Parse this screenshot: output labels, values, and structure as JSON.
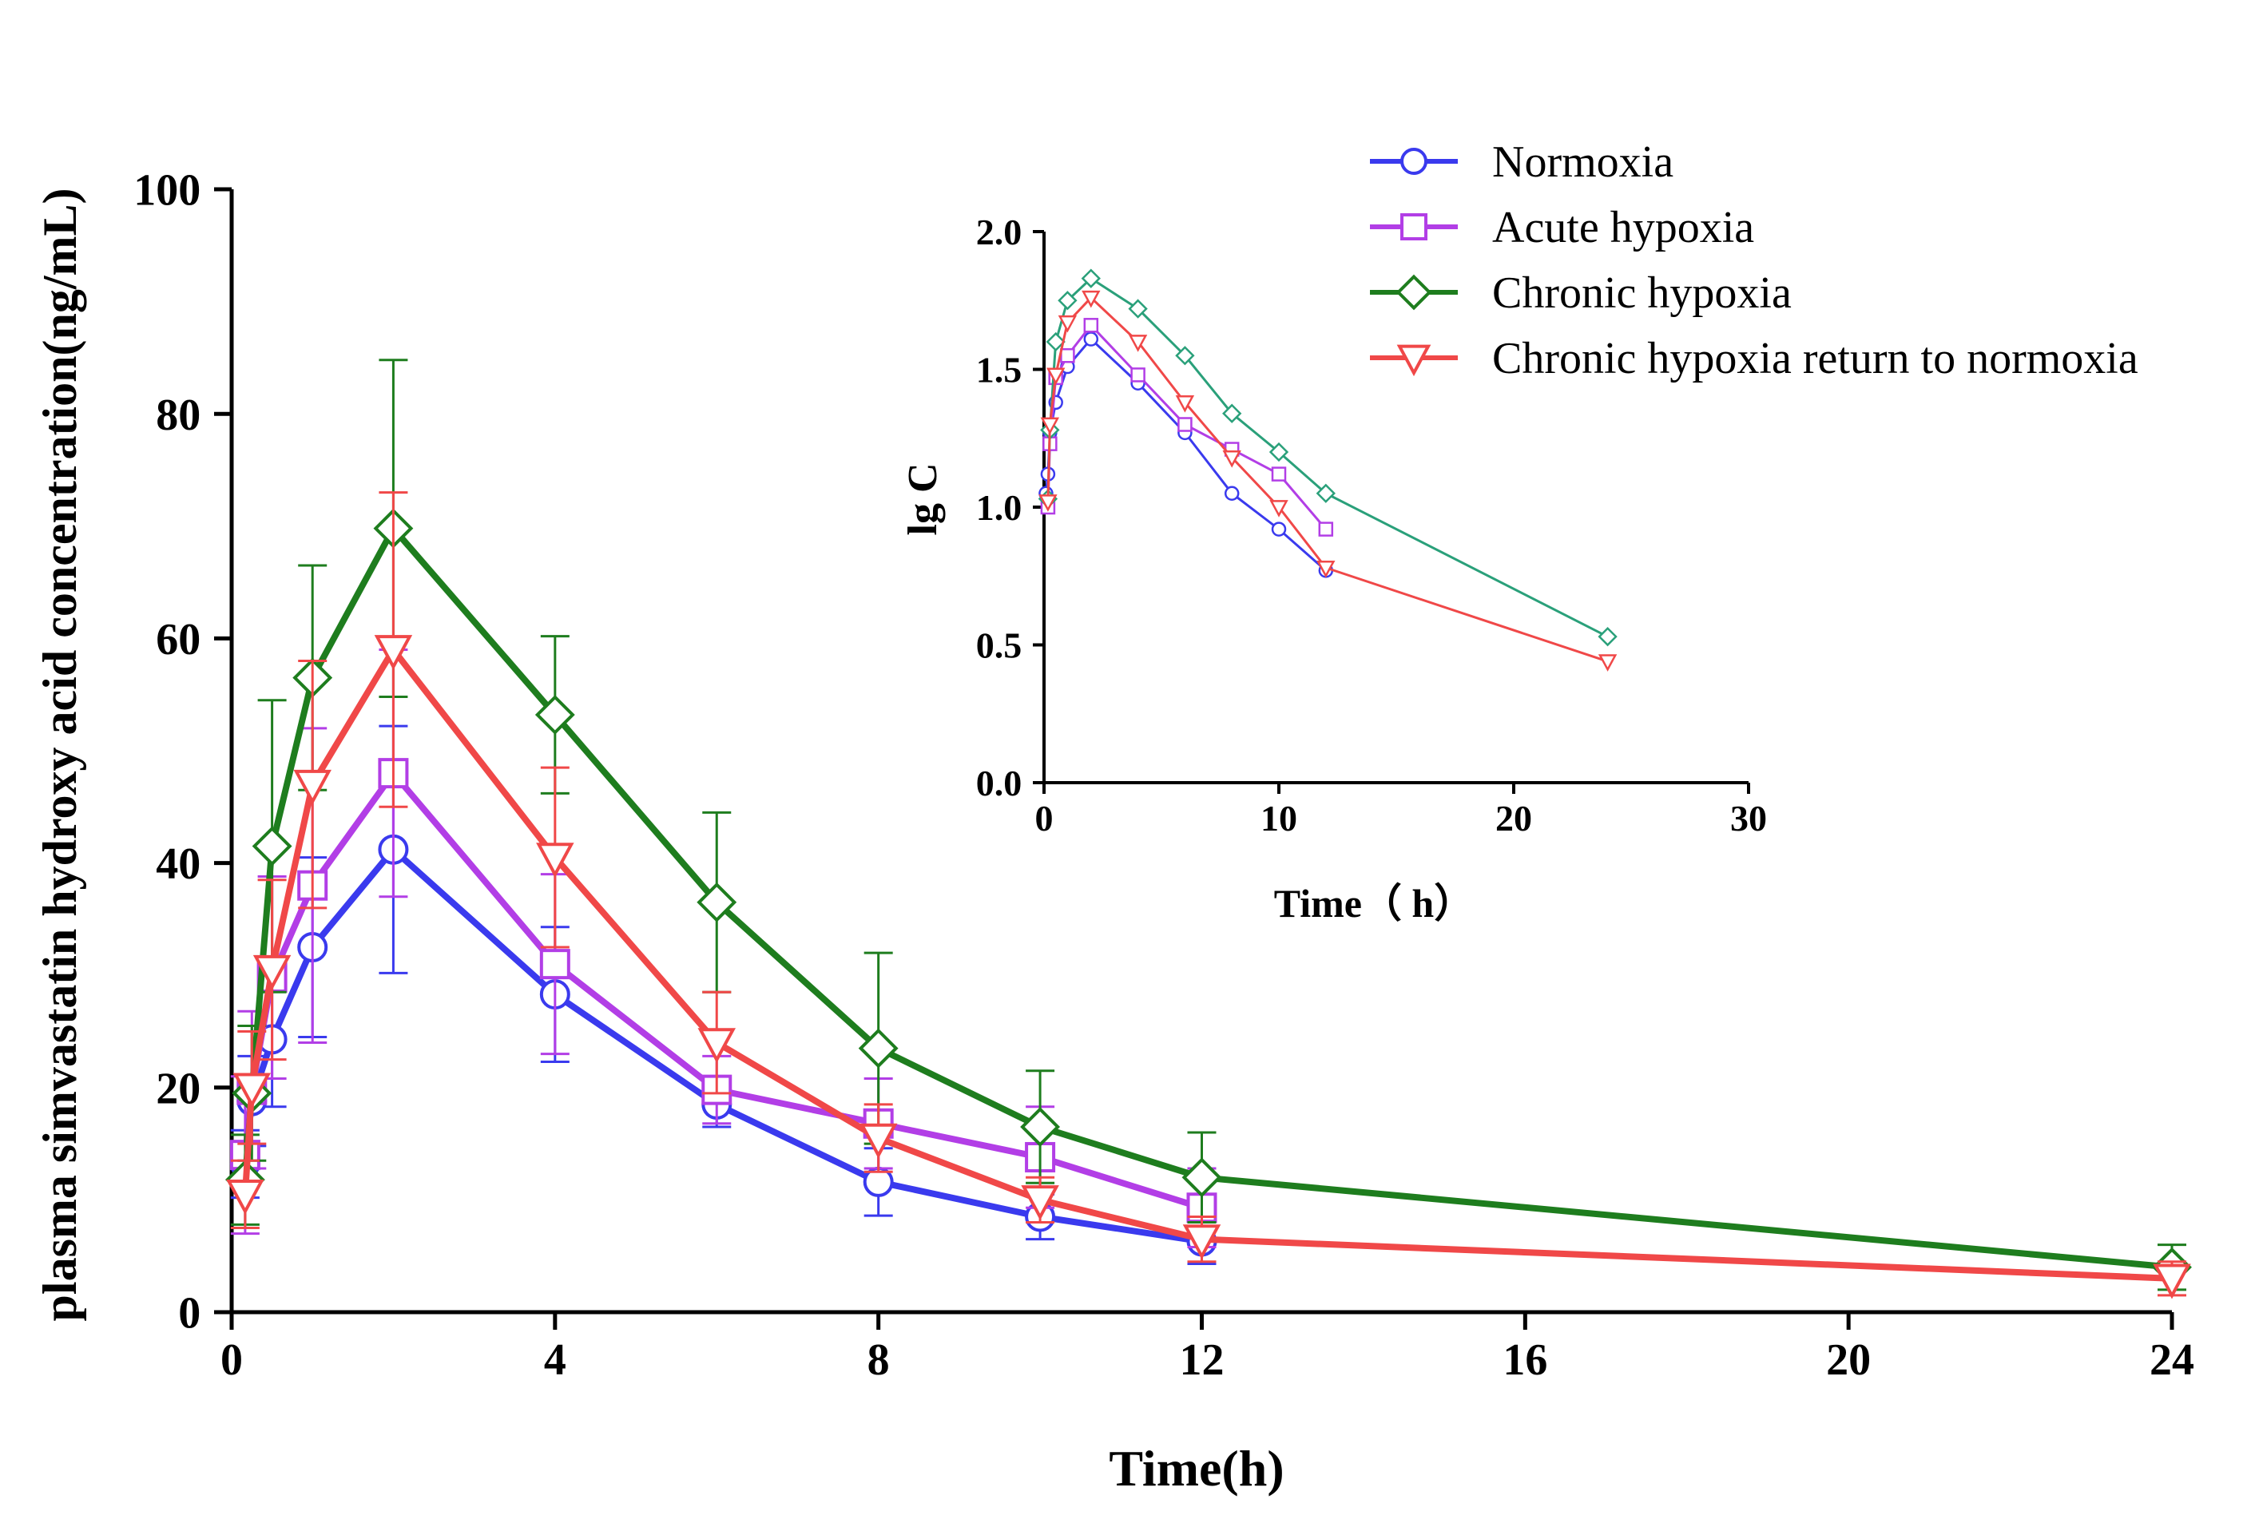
{
  "colors": {
    "normoxia": "#3a3aee",
    "acute": "#b23ee6",
    "chronic": "#1e7d1e",
    "return": "#f04848",
    "inset_chronic": "#2aa07a",
    "axis": "#000000"
  },
  "chart_data": [
    {
      "id": "main",
      "type": "line",
      "title": "",
      "xlabel": "Time(h)",
      "ylabel": "plasma simvastatin hydroxy acid concentration(ng/mL)",
      "xlim": [
        0,
        24
      ],
      "ylim": [
        0,
        100
      ],
      "xticks": [
        0,
        4,
        8,
        12,
        16,
        20,
        24
      ],
      "xtick_labels": [
        "0",
        "4",
        "8",
        "12",
        "16",
        "20",
        "24"
      ],
      "yticks": [
        0,
        20,
        40,
        60,
        80,
        100
      ],
      "ytick_labels": [
        "0",
        "20",
        "40",
        "60",
        "80",
        "100"
      ],
      "grid": false,
      "series": [
        {
          "name": "Normoxia",
          "marker": "circle",
          "x": [
            0.167,
            0.25,
            0.5,
            1,
            2,
            4,
            6,
            8,
            10,
            12
          ],
          "y": [
            13.2,
            18.8,
            24.3,
            32.5,
            41.2,
            28.3,
            18.5,
            11.6,
            8.5,
            6.3
          ],
          "err": [
            3.0,
            4.0,
            6.0,
            8.0,
            11.0,
            6.0,
            2.0,
            3.0,
            2.0,
            2.0
          ]
        },
        {
          "name": "Acute hypoxia",
          "marker": "square",
          "x": [
            0.167,
            0.25,
            0.5,
            1,
            2,
            4,
            6,
            8,
            10,
            12
          ],
          "y": [
            14.0,
            19.8,
            29.8,
            38.0,
            48.0,
            31.0,
            19.8,
            16.8,
            13.8,
            9.3
          ],
          "err": [
            7.0,
            7.0,
            9.0,
            14.0,
            11.0,
            8.0,
            3.0,
            4.0,
            4.5,
            3.5
          ]
        },
        {
          "name": "Chronic hypoxia",
          "marker": "diamond",
          "x": [
            0.167,
            0.25,
            0.5,
            1,
            2,
            4,
            6,
            8,
            10,
            12,
            24
          ],
          "y": [
            11.8,
            19.5,
            41.5,
            56.5,
            69.8,
            53.2,
            36.5,
            23.5,
            16.5,
            12.0,
            4.0
          ],
          "err": [
            4.0,
            6.0,
            13.0,
            10.0,
            15.0,
            7.0,
            8.0,
            8.5,
            5.0,
            4.0,
            2.0
          ]
        },
        {
          "name": "Chronic hypoxia return to normoxia",
          "marker": "triangle-down",
          "x": [
            0.167,
            0.25,
            0.5,
            1,
            2,
            4,
            6,
            8,
            10,
            12,
            24
          ],
          "y": [
            10.5,
            20.0,
            30.5,
            47.0,
            59.0,
            40.5,
            24.0,
            15.5,
            10.0,
            6.5,
            3.0
          ],
          "err": [
            3.0,
            5.0,
            8.0,
            11.0,
            14.0,
            8.0,
            4.5,
            3.0,
            2.0,
            2.0,
            1.5
          ]
        }
      ],
      "legend": {
        "position": "top-right",
        "entries": [
          "Normoxia",
          "Acute hypoxia",
          "Chronic hypoxia",
          "Chronic hypoxia return to normoxia"
        ]
      }
    },
    {
      "id": "inset",
      "type": "line",
      "title": "",
      "xlabel": "Time（ h）",
      "ylabel": "lg C",
      "xlim": [
        0,
        30
      ],
      "ylim": [
        0,
        2.0
      ],
      "xticks": [
        0,
        10,
        20,
        30
      ],
      "xtick_labels": [
        "0",
        "10",
        "20",
        "30"
      ],
      "yticks": [
        0,
        0.5,
        1.0,
        1.5,
        2.0
      ],
      "ytick_labels": [
        "0.0",
        "0.5",
        "1.0",
        "1.5",
        "2.0"
      ],
      "grid": false,
      "series": [
        {
          "name": "Normoxia",
          "marker": "circle",
          "x": [
            0.083,
            0.167,
            0.25,
            0.5,
            1,
            2,
            4,
            6,
            8,
            10,
            12
          ],
          "y": [
            1.05,
            1.12,
            1.27,
            1.38,
            1.51,
            1.61,
            1.45,
            1.27,
            1.05,
            0.92,
            0.77
          ]
        },
        {
          "name": "Acute hypoxia",
          "marker": "square",
          "x": [
            0.167,
            0.25,
            0.5,
            1,
            2,
            4,
            6,
            8,
            10,
            12
          ],
          "y": [
            1.0,
            1.23,
            1.47,
            1.55,
            1.66,
            1.48,
            1.3,
            1.21,
            1.12,
            0.92
          ]
        },
        {
          "name": "Chronic hypoxia",
          "marker": "diamond",
          "x": [
            0.167,
            0.25,
            0.5,
            1,
            2,
            4,
            6,
            8,
            10,
            12,
            24
          ],
          "y": [
            1.03,
            1.28,
            1.6,
            1.75,
            1.83,
            1.72,
            1.55,
            1.34,
            1.2,
            1.05,
            0.53
          ]
        },
        {
          "name": "Chronic hypoxia return to normoxia",
          "marker": "triangle-down",
          "x": [
            0.167,
            0.25,
            0.5,
            1,
            2,
            4,
            6,
            8,
            10,
            12,
            24
          ],
          "y": [
            1.02,
            1.3,
            1.48,
            1.67,
            1.76,
            1.6,
            1.38,
            1.18,
            1.0,
            0.78,
            0.44
          ]
        }
      ]
    }
  ]
}
